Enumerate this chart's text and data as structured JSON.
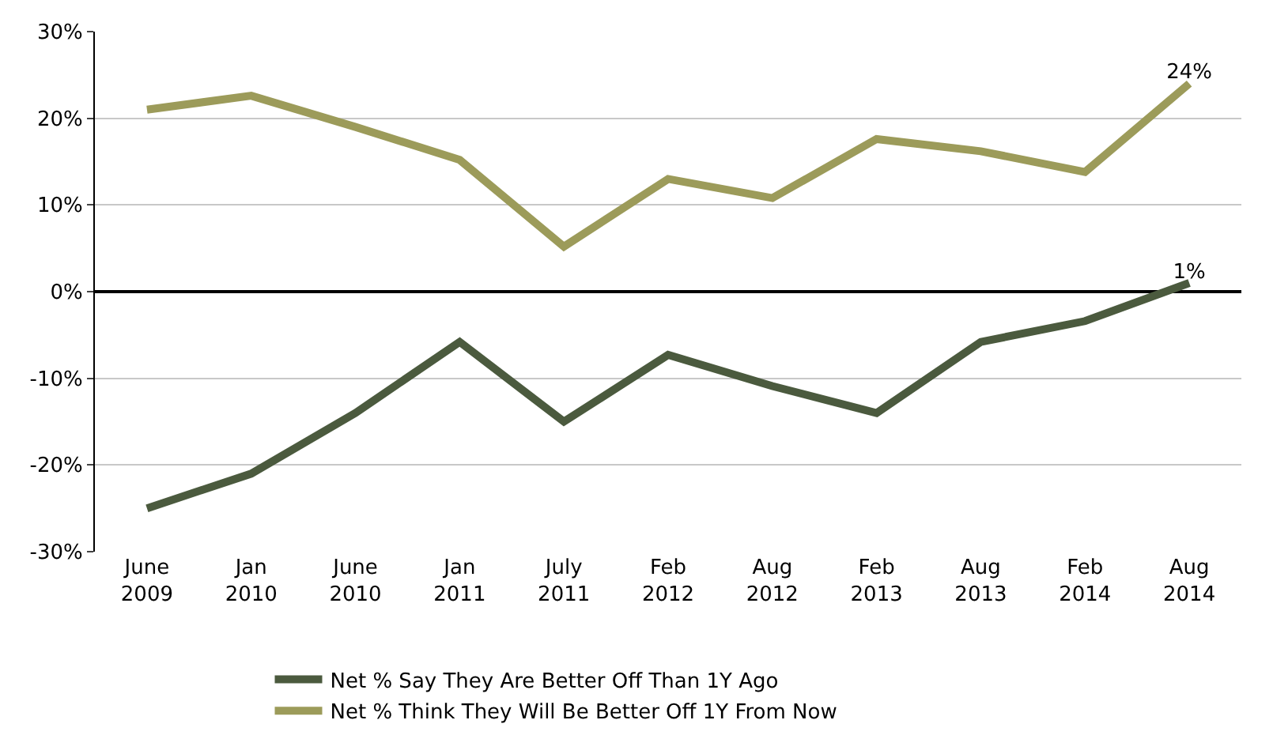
{
  "chart_data": {
    "type": "line",
    "categories": [
      "June\n2009",
      "Jan\n2010",
      "June\n2010",
      "Jan\n2011",
      "July\n2011",
      "Feb\n2012",
      "Aug\n2012",
      "Feb\n2013",
      "Aug\n2013",
      "Feb\n2014",
      "Aug\n2014"
    ],
    "series": [
      {
        "name": "Net % Say They Are Better Off Than 1Y Ago",
        "color": "#4b5a3e",
        "values": [
          -25,
          -21,
          -14,
          -5.8,
          -15,
          -7.3,
          -10.9,
          -14,
          -5.8,
          -3.4,
          1
        ],
        "value_labels": [
          null,
          null,
          null,
          null,
          null,
          null,
          null,
          null,
          null,
          null,
          "1%"
        ]
      },
      {
        "name": "Net % Think They Will Be Better Off 1Y From Now",
        "color": "#9c9b5a",
        "values": [
          21,
          22.6,
          19,
          15.2,
          5.2,
          13,
          10.8,
          17.6,
          16.2,
          13.8,
          24
        ],
        "value_labels": [
          null,
          null,
          null,
          null,
          null,
          null,
          null,
          null,
          null,
          null,
          "24%"
        ]
      }
    ],
    "ylim": [
      -30,
      30
    ],
    "yticks": [
      {
        "value": -30,
        "label": "-30%"
      },
      {
        "value": -20,
        "label": "-20%"
      },
      {
        "value": -10,
        "label": "-10%"
      },
      {
        "value": 0,
        "label": "0%"
      },
      {
        "value": 10,
        "label": "10%"
      },
      {
        "value": 20,
        "label": "20%"
      },
      {
        "value": 30,
        "label": "30%"
      }
    ],
    "grid": "y",
    "legend": "bottom",
    "marker": "none",
    "line_style": "solid"
  }
}
